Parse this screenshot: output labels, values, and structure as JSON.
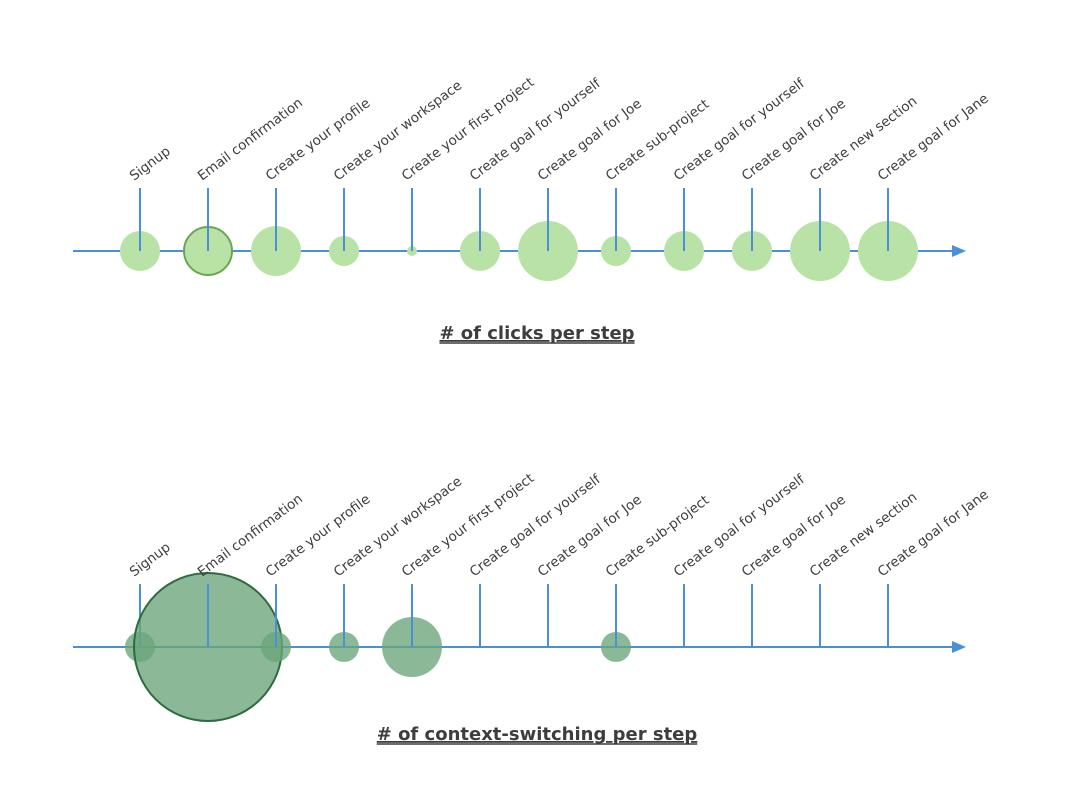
{
  "chart_data": [
    {
      "type": "scatter",
      "title": "# of clicks per step",
      "categories": [
        "Signup",
        "Email confirmation",
        "Create your profile",
        "Create your workspace",
        "Create your first project",
        "Create goal for yourself",
        "Create goal for Joe",
        "Create sub-project",
        "Create goal for yourself",
        "Create goal for Joe",
        "Create new section",
        "Create goal for Jane"
      ],
      "values": [
        20,
        24,
        25,
        15,
        5,
        20,
        30,
        15,
        20,
        20,
        30,
        30
      ],
      "highlighted": [
        "Email confirmation"
      ],
      "colors": {
        "bubble": "#b9e3a6",
        "highlight_stroke": "#6aa555",
        "axis": "#4a90d9",
        "title": "#3d3d3d"
      }
    },
    {
      "type": "scatter",
      "title": "# of context-switching per step",
      "categories": [
        "Signup",
        "Email confirmation",
        "Create your profile",
        "Create your workspace",
        "Create your first project",
        "Create goal for yourself",
        "Create goal for Joe",
        "Create sub-project",
        "Create goal for yourself",
        "Create goal for Joe",
        "Create new section",
        "Create goal for Jane"
      ],
      "values": [
        15,
        74,
        15,
        15,
        30,
        0,
        0,
        15,
        0,
        0,
        0,
        0
      ],
      "highlighted": [
        "Email confirmation"
      ],
      "colors": {
        "bubble": "#6aa57a",
        "highlight_stroke": "#2e6b3e",
        "axis": "#4a90d9",
        "title": "#3d3d3d"
      }
    }
  ]
}
